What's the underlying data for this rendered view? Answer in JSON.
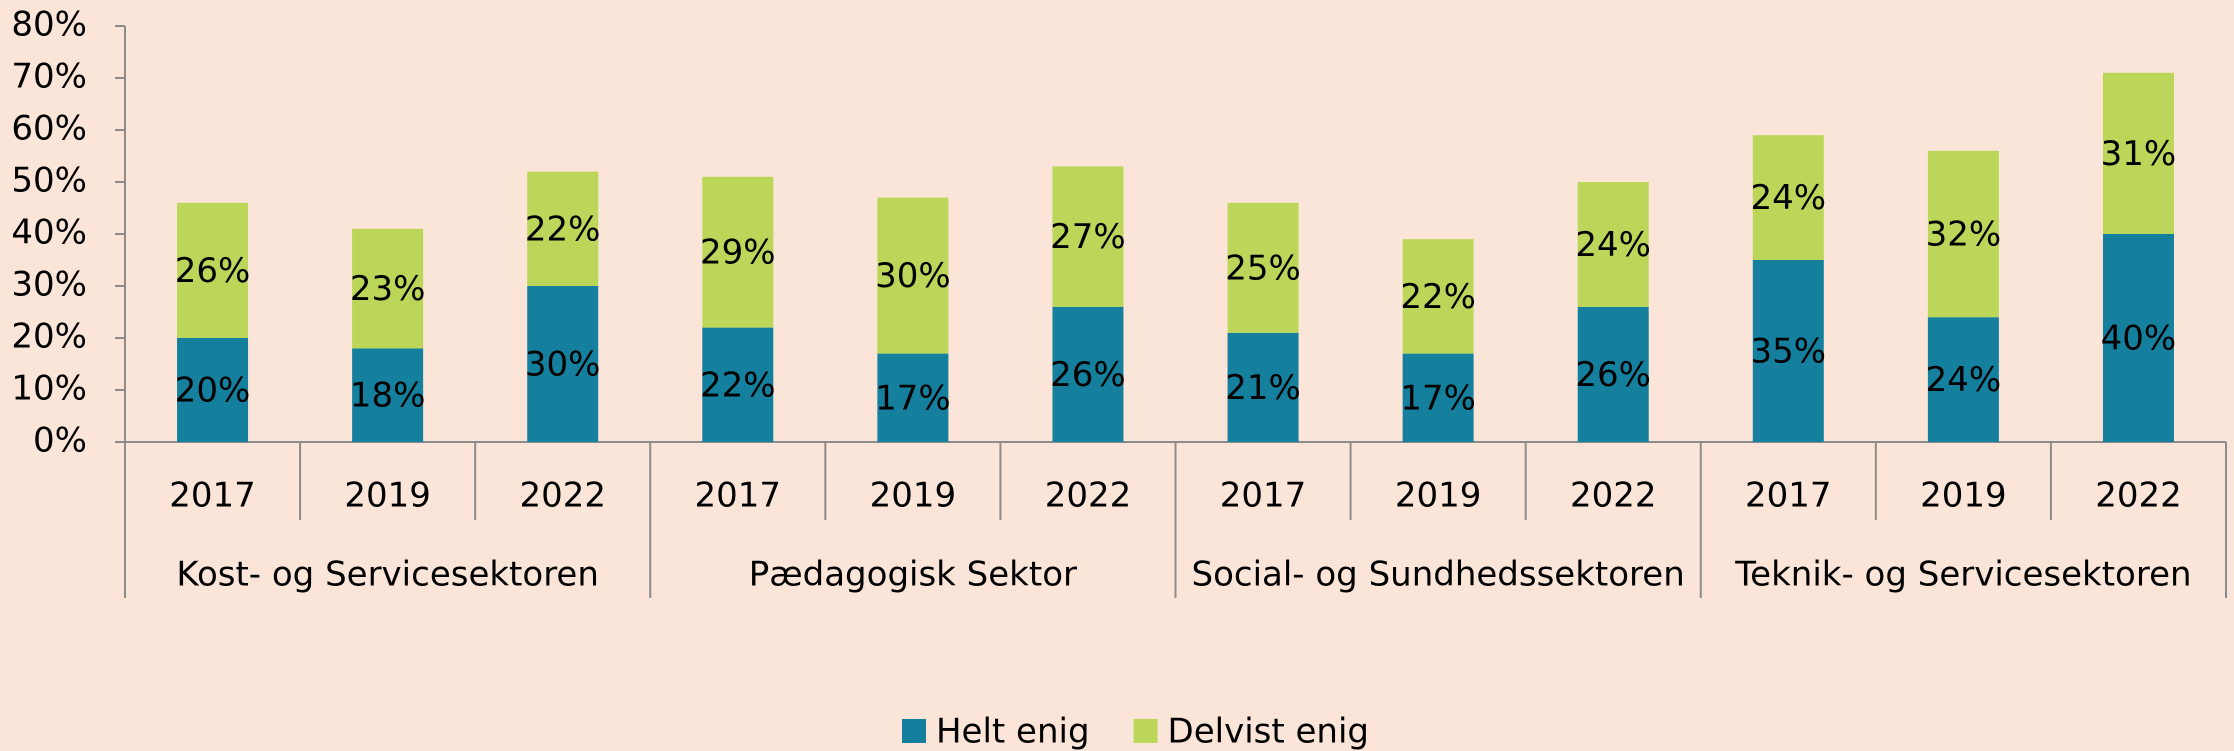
{
  "chart_data": {
    "type": "stacked_bar",
    "categories": [
      "2017",
      "2019",
      "2022",
      "2017",
      "2019",
      "2022",
      "2017",
      "2019",
      "2022",
      "2017",
      "2019",
      "2022"
    ],
    "category_groups": [
      "Kost- og Servicesektoren",
      "Pædagogisk Sektor",
      "Social- og Sundhedssektoren",
      "Teknik- og Servicesektoren"
    ],
    "series": [
      {
        "name": "Helt enig",
        "color": "#157f9e",
        "values": [
          20,
          18,
          30,
          22,
          17,
          26,
          21,
          17,
          26,
          35,
          24,
          40
        ],
        "value_labels": [
          "20%",
          "18%",
          "30%",
          "22%",
          "17%",
          "26%",
          "21%",
          "17%",
          "26%",
          "35%",
          "24%",
          "40%"
        ]
      },
      {
        "name": "Delvist enig",
        "color": "#bcd65a",
        "values": [
          26,
          23,
          22,
          29,
          30,
          27,
          25,
          22,
          24,
          24,
          32,
          31
        ],
        "value_labels": [
          "26%",
          "23%",
          "22%",
          "29%",
          "30%",
          "27%",
          "25%",
          "22%",
          "24%",
          "24%",
          "32%",
          "31%"
        ]
      }
    ],
    "ylim": [
      0,
      80
    ],
    "yticks": [
      {
        "value": 0,
        "label": "0%"
      },
      {
        "value": 10,
        "label": "10%"
      },
      {
        "value": 20,
        "label": "20%"
      },
      {
        "value": 30,
        "label": "30%"
      },
      {
        "value": 40,
        "label": "40%"
      },
      {
        "value": 50,
        "label": "50%"
      },
      {
        "value": 60,
        "label": "60%"
      },
      {
        "value": 70,
        "label": "70%"
      },
      {
        "value": 80,
        "label": "80%"
      }
    ],
    "grid": false,
    "legend": "bottom"
  }
}
